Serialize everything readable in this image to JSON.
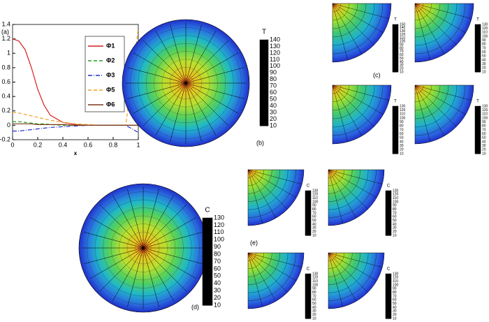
{
  "chart_data": [
    {
      "type": "line",
      "label": "(a)",
      "x_label": "x",
      "x": [
        0,
        0.05,
        0.1,
        0.15,
        0.2,
        0.25,
        0.3,
        0.4,
        0.5,
        0.6,
        0.7,
        0.8,
        0.9,
        1
      ],
      "xlim": [
        0,
        1
      ],
      "ylim": [
        -0.2,
        1.4
      ],
      "xticks": [
        0,
        0.2,
        0.4,
        0.6,
        0.8,
        1
      ],
      "yticks": [
        -0.2,
        0,
        0.2,
        0.4,
        0.6,
        0.8,
        1,
        1.2,
        1.4
      ],
      "series": [
        {
          "name": "Φ1",
          "color": "#d42020",
          "dash": "solid",
          "values": [
            1.2,
            1.17,
            1.05,
            0.8,
            0.5,
            0.28,
            0.14,
            0.04,
            0.01,
            0,
            0,
            0,
            0,
            0
          ]
        },
        {
          "name": "Φ2",
          "color": "#1fa11f",
          "dash": "dashed",
          "values": [
            0.05,
            0.05,
            0.04,
            0.03,
            0.02,
            0.02,
            0.01,
            0,
            0,
            0,
            0,
            0,
            0,
            0
          ]
        },
        {
          "name": "Φ3",
          "color": "#2030c8",
          "dash": "dashdot",
          "values": [
            -0.08,
            -0.08,
            -0.07,
            -0.06,
            -0.05,
            -0.04,
            -0.03,
            -0.02,
            -0.01,
            0,
            0,
            0,
            0,
            -0.1
          ]
        },
        {
          "name": "Φ5",
          "color": "#f0a020",
          "dash": "dashed",
          "values": [
            0.18,
            0.17,
            0.15,
            0.13,
            0.11,
            0.09,
            0.07,
            0.04,
            0.02,
            0.01,
            0,
            0,
            0,
            1.35
          ]
        },
        {
          "name": "Φ6",
          "color": "#7a3a1a",
          "dash": "solid",
          "values": [
            0.02,
            0.02,
            0.02,
            0.02,
            0.01,
            0.01,
            0.01,
            0.01,
            0,
            0,
            0,
            0,
            0,
            0
          ]
        }
      ]
    },
    {
      "type": "contour",
      "label": "(b)",
      "colorbar_title": "T",
      "colorbar_ticks": [
        10,
        20,
        30,
        40,
        50,
        60,
        70,
        80,
        90,
        100,
        110,
        120,
        130,
        140
      ]
    },
    {
      "type": "contour-grid",
      "label": "(c)",
      "panels": [
        {
          "colorbar_title": "T",
          "colorbar_ticks": [
            10,
            20,
            30,
            40,
            50,
            60,
            70,
            80,
            90,
            100,
            110,
            120,
            130,
            140,
            150
          ]
        },
        {
          "colorbar_title": "T",
          "colorbar_ticks": [
            10,
            20,
            30,
            40,
            50,
            60,
            70,
            80,
            90,
            100,
            110,
            120,
            130
          ]
        },
        {
          "colorbar_title": "T",
          "colorbar_ticks": [
            10,
            20,
            30,
            40,
            50,
            60,
            70,
            80,
            90,
            100,
            110,
            120,
            130
          ]
        },
        {
          "colorbar_title": "T",
          "colorbar_ticks": [
            10,
            20,
            30,
            40,
            50,
            60,
            70,
            80,
            90,
            100,
            110,
            120,
            130
          ]
        }
      ]
    },
    {
      "type": "contour",
      "label": "(d)",
      "colorbar_title": "C",
      "colorbar_ticks": [
        10,
        20,
        30,
        40,
        50,
        60,
        70,
        80,
        90,
        100,
        110,
        120,
        130
      ]
    },
    {
      "type": "contour-grid",
      "label": "(e)",
      "panels": [
        {
          "colorbar_title": "C",
          "colorbar_ticks": [
            10,
            20,
            30,
            40,
            50,
            60,
            70,
            80,
            90,
            100,
            110,
            120,
            130
          ]
        },
        {
          "colorbar_title": "C",
          "colorbar_ticks": [
            10,
            20,
            30,
            40,
            50,
            60,
            70,
            80,
            90,
            100,
            110,
            120,
            130
          ]
        },
        {
          "colorbar_title": "C",
          "colorbar_ticks": [
            10,
            20,
            30,
            40,
            50,
            60,
            70,
            80,
            90,
            100,
            110,
            120,
            130
          ]
        },
        {
          "colorbar_title": "C",
          "colorbar_ticks": [
            10,
            20,
            30,
            40,
            50,
            60,
            70,
            80,
            90,
            100,
            110,
            120,
            130
          ]
        }
      ]
    }
  ]
}
